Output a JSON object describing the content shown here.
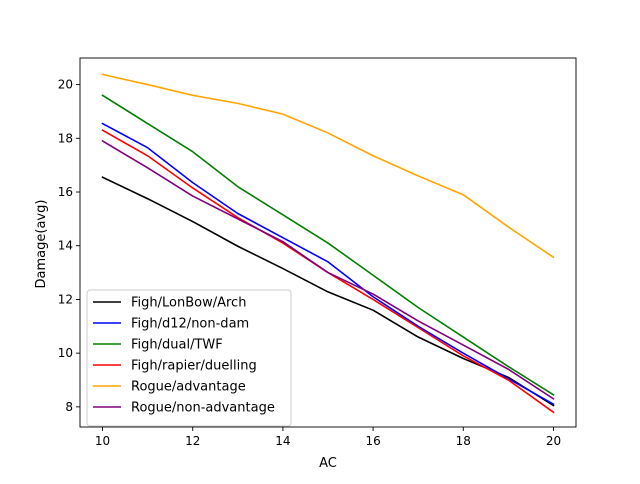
{
  "chart_data": {
    "type": "line",
    "title": "",
    "xlabel": "AC",
    "ylabel": "Damage(avg)",
    "xlim": [
      9.5,
      20.5
    ],
    "ylim": [
      7.25,
      20.99
    ],
    "xticks": [
      10,
      12,
      14,
      16,
      18,
      20
    ],
    "yticks": [
      8,
      10,
      12,
      14,
      16,
      18,
      20
    ],
    "grid": false,
    "legend_position": "lower-left",
    "x": [
      10,
      11,
      12,
      13,
      14,
      15,
      16,
      17,
      18,
      19,
      20
    ],
    "series": [
      {
        "name": "Figh/LonBow/Arch",
        "color": "#000000",
        "values": [
          16.55,
          15.75,
          14.9,
          13.98,
          13.15,
          12.28,
          11.6,
          10.6,
          9.8,
          9.1,
          8.05
        ]
      },
      {
        "name": "Figh/d12/non-dam",
        "color": "#0000ff",
        "values": [
          18.55,
          17.65,
          16.35,
          15.2,
          14.3,
          13.4,
          12.1,
          11.0,
          10.0,
          9.05,
          8.1
        ]
      },
      {
        "name": "Figh/dual/TWF",
        "color": "#008000",
        "values": [
          19.6,
          18.55,
          17.5,
          16.2,
          15.15,
          14.1,
          12.9,
          11.7,
          10.6,
          9.5,
          8.45
        ]
      },
      {
        "name": "Figh/rapier/duelling",
        "color": "#ff0000",
        "values": [
          18.3,
          17.35,
          16.15,
          15.05,
          14.1,
          13.0,
          12.0,
          10.95,
          9.9,
          9.0,
          7.8
        ]
      },
      {
        "name": "Rogue/advantage",
        "color": "#ffa500",
        "values": [
          20.38,
          20.0,
          19.6,
          19.3,
          18.9,
          18.2,
          17.35,
          16.6,
          15.9,
          14.7,
          13.57
        ]
      },
      {
        "name": "Rogue/non-advantage",
        "color": "#800080",
        "values": [
          17.9,
          16.9,
          15.85,
          15.0,
          14.15,
          13.0,
          12.2,
          11.2,
          10.3,
          9.4,
          8.3
        ]
      }
    ]
  }
}
